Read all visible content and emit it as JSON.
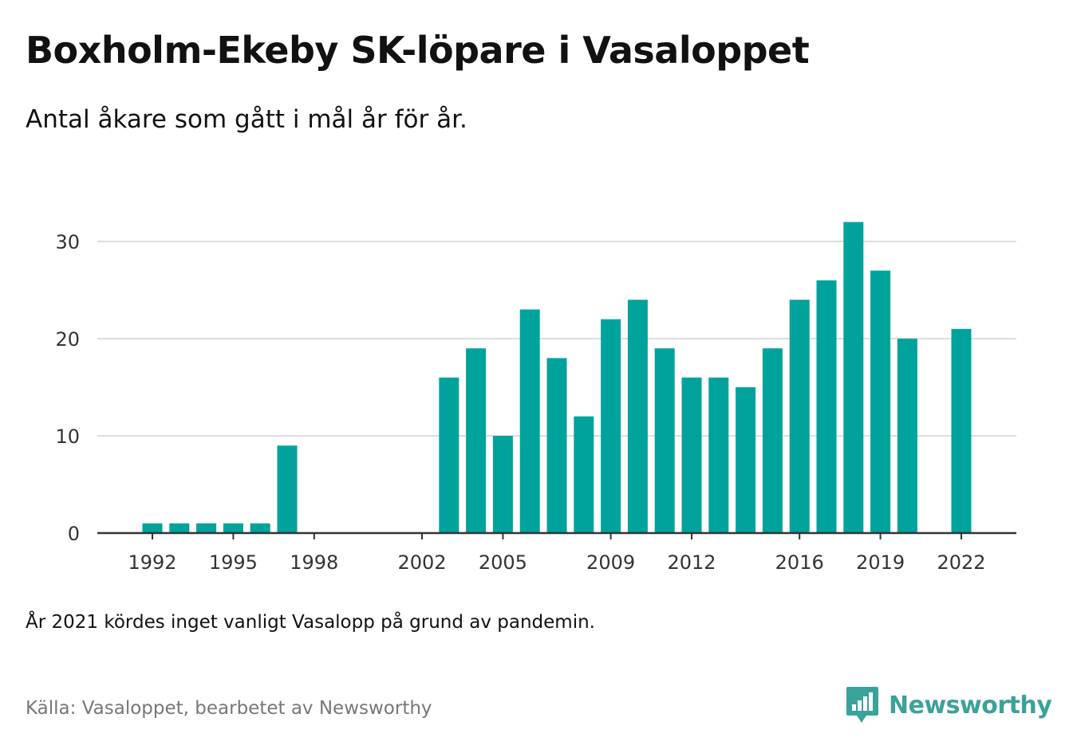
{
  "title": "Boxholm-Ekeby SK-löpare i Vasaloppet",
  "subtitle": "Antal åkare som gått i mål år för år.",
  "note": "År 2021 kördes inget vanligt Vasalopp på grund av pandemin.",
  "source": "Källa: Vasaloppet, bearbetet av Newsworthy",
  "brand": {
    "name": "Newsworthy",
    "icon": "newsworthy-logo-icon"
  },
  "colors": {
    "bar": "#00a39c",
    "grid": "#dddddd",
    "axis": "#333333",
    "brand": "#3aa29a"
  },
  "chart_data": {
    "type": "bar",
    "x": [
      1992,
      1993,
      1994,
      1995,
      1996,
      1997,
      1998,
      1999,
      2000,
      2001,
      2002,
      2003,
      2004,
      2005,
      2006,
      2007,
      2008,
      2009,
      2010,
      2011,
      2012,
      2013,
      2014,
      2015,
      2016,
      2017,
      2018,
      2019,
      2020,
      2021,
      2022
    ],
    "values": [
      1,
      1,
      1,
      1,
      1,
      9,
      null,
      null,
      null,
      null,
      null,
      16,
      19,
      10,
      23,
      18,
      12,
      22,
      24,
      19,
      16,
      16,
      15,
      19,
      24,
      26,
      32,
      27,
      20,
      null,
      21
    ],
    "x_ticks": [
      "1992",
      "1995",
      "1998",
      "2002",
      "2005",
      "2009",
      "2012",
      "2016",
      "2019",
      "2022"
    ],
    "y_ticks": [
      "0",
      "10",
      "20",
      "30"
    ],
    "ylim": [
      0,
      32
    ],
    "grid": true
  }
}
